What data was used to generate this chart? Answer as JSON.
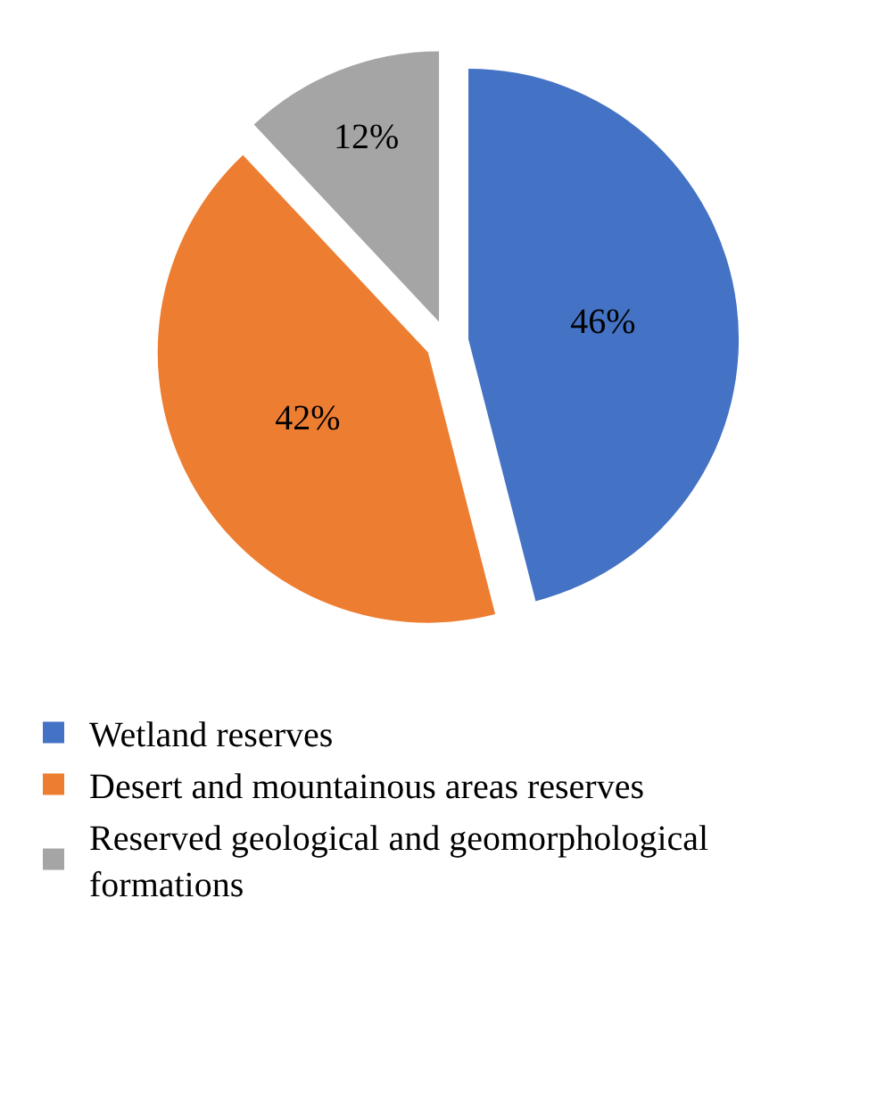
{
  "chart_data": {
    "type": "pie",
    "categories": [
      "Wetland reserves",
      "Desert and mountainous areas reserves",
      "Reserved geological and geomorphological formations"
    ],
    "values": [
      46,
      42,
      12
    ],
    "colors": [
      "#4472c4",
      "#ed7d31",
      "#a5a5a5"
    ],
    "value_labels": [
      "46%",
      "42%",
      "12%"
    ],
    "legend": "bottom"
  }
}
